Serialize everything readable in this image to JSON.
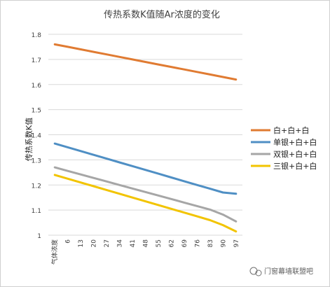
{
  "chart_data": {
    "type": "line",
    "title": "传热系数K值随Ar浓度的变化",
    "ylabel": "传热系数K值",
    "xlabel": "",
    "categories": [
      "气体浓度",
      "6",
      "13",
      "20",
      "27",
      "34",
      "41",
      "48",
      "55",
      "62",
      "69",
      "76",
      "83",
      "90",
      "97"
    ],
    "ylim": [
      1,
      1.8
    ],
    "yticks": [
      "1",
      "1.1",
      "1.2",
      "1.3",
      "1.4",
      "1.5",
      "1.6",
      "1.7",
      "1.8"
    ],
    "grid": true,
    "legend_position": "right",
    "series": [
      {
        "name": "白+白+白",
        "color": "#e07b32",
        "values": [
          1.76,
          1.75,
          1.74,
          1.73,
          1.72,
          1.71,
          1.7,
          1.69,
          1.68,
          1.67,
          1.66,
          1.65,
          1.64,
          1.63,
          1.62
        ]
      },
      {
        "name": "单银+白+白",
        "color": "#4f8fc4",
        "values": [
          1.365,
          1.35,
          1.335,
          1.32,
          1.305,
          1.29,
          1.275,
          1.26,
          1.245,
          1.23,
          1.215,
          1.2,
          1.185,
          1.17,
          1.165
        ]
      },
      {
        "name": "双银+白+白",
        "color": "#a6a6a6",
        "values": [
          1.27,
          1.256,
          1.242,
          1.228,
          1.214,
          1.2,
          1.186,
          1.172,
          1.158,
          1.144,
          1.13,
          1.116,
          1.102,
          1.082,
          1.055
        ]
      },
      {
        "name": "三银+白+白",
        "color": "#f2c400",
        "values": [
          1.24,
          1.225,
          1.21,
          1.195,
          1.18,
          1.165,
          1.15,
          1.135,
          1.12,
          1.105,
          1.09,
          1.075,
          1.06,
          1.04,
          1.015
        ]
      }
    ]
  },
  "watermark": {
    "text": "门窗幕墙联盟吧",
    "icon": "wechat-icon"
  }
}
